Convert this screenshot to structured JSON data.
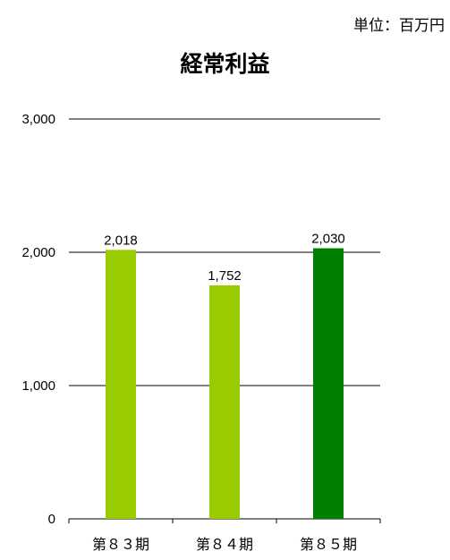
{
  "unit_label": "単位：百万円",
  "chart_data": {
    "type": "bar",
    "title": "経常利益",
    "categories": [
      "第８３期",
      "第８４期",
      "第８５期"
    ],
    "values": [
      2018,
      1752,
      2030
    ],
    "value_labels": [
      "2,018",
      "1,752",
      "2,030"
    ],
    "ylim": [
      0,
      3000
    ],
    "yticks": [
      0,
      1000,
      2000,
      3000
    ],
    "ytick_labels": [
      "0",
      "1,000",
      "2,000",
      "3,000"
    ],
    "grid": true,
    "bar_colors": [
      "#99cc00",
      "#99cc00",
      "#008000"
    ]
  }
}
